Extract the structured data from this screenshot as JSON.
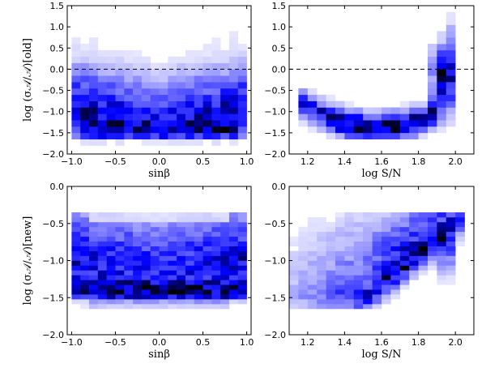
{
  "chart_data": [
    {
      "type": "heatmap",
      "panel": "top-left",
      "title": "",
      "xlabel": "sinβ",
      "ylabel": "log (σ𝒜/𝒜)[old]",
      "xlim": [
        -1.05,
        1.05
      ],
      "ylim": [
        -2.0,
        1.5
      ],
      "xticks": [
        -1.0,
        -0.5,
        0.0,
        0.5,
        1.0
      ],
      "xtick_labels": [
        "−1.0",
        "−0.5",
        "0.0",
        "0.5",
        "1.0"
      ],
      "yticks": [
        -2.0,
        -1.5,
        -1.0,
        -0.5,
        0.0,
        0.5,
        1.0,
        1.5
      ],
      "ytick_labels": [
        "−2.0",
        "−1.5",
        "−1.0",
        "−0.5",
        "0.0",
        "0.5",
        "1.0",
        "1.5"
      ],
      "reference_line": {
        "y": 0.0,
        "style": "dashed"
      },
      "x_bins": [
        -1.0,
        1.0,
        20
      ],
      "y_bins": [
        -1.8,
        1.5,
        22
      ],
      "grid": false,
      "colormap": "white-to-blue-to-black"
    },
    {
      "type": "heatmap",
      "panel": "top-right",
      "title": "",
      "xlabel": "log S/N",
      "ylabel": "",
      "xlim": [
        1.1,
        2.1
      ],
      "ylim": [
        -2.0,
        1.5
      ],
      "xticks": [
        1.2,
        1.4,
        1.6,
        1.8,
        2.0
      ],
      "xtick_labels": [
        "1.2",
        "1.4",
        "1.6",
        "1.8",
        "2.0"
      ],
      "yticks": [
        -2.0,
        -1.5,
        -1.0,
        -0.5,
        0.0,
        0.5,
        1.0,
        1.5
      ],
      "ytick_labels": [
        "−2.0",
        "−1.5",
        "−1.0",
        "−0.5",
        "0.0",
        "0.5",
        "1.0",
        "1.5"
      ],
      "reference_line": {
        "y": 0.0,
        "style": "dashed"
      },
      "x_bins": [
        1.1,
        2.0,
        18
      ],
      "y_bins": [
        -1.8,
        1.5,
        22
      ],
      "grid": false,
      "colormap": "white-to-blue-to-black"
    },
    {
      "type": "heatmap",
      "panel": "bottom-left",
      "title": "",
      "xlabel": "sinβ",
      "ylabel": "log (σ𝒜/𝒜)[new]",
      "xlim": [
        -1.05,
        1.05
      ],
      "ylim": [
        -2.0,
        0.0
      ],
      "xticks": [
        -1.0,
        -0.5,
        0.0,
        0.5,
        1.0
      ],
      "xtick_labels": [
        "−1.0",
        "−0.5",
        "0.0",
        "0.5",
        "1.0"
      ],
      "yticks": [
        -2.0,
        -1.5,
        -1.0,
        -0.5,
        0.0
      ],
      "ytick_labels": [
        "−2.0",
        "−1.5",
        "−1.0",
        "−0.5",
        "0.0"
      ],
      "x_bins": [
        -1.0,
        1.0,
        20
      ],
      "y_bins": [
        -1.65,
        -0.35,
        20
      ],
      "grid": false,
      "colormap": "white-to-blue-to-black"
    },
    {
      "type": "heatmap",
      "panel": "bottom-right",
      "title": "",
      "xlabel": "log S/N",
      "ylabel": "",
      "xlim": [
        1.1,
        2.1
      ],
      "ylim": [
        -2.0,
        0.0
      ],
      "xticks": [
        1.2,
        1.4,
        1.6,
        1.8,
        2.0
      ],
      "xtick_labels": [
        "1.2",
        "1.4",
        "1.6",
        "1.8",
        "2.0"
      ],
      "yticks": [
        -2.0,
        -1.5,
        -1.0,
        -0.5,
        0.0
      ],
      "ytick_labels": [
        "−2.0",
        "−1.5",
        "−1.0",
        "−0.5",
        "0.0"
      ],
      "x_bins": [
        1.1,
        2.05,
        19
      ],
      "y_bins": [
        -1.65,
        -0.35,
        20
      ],
      "grid": false,
      "colormap": "white-to-blue-to-black"
    }
  ]
}
